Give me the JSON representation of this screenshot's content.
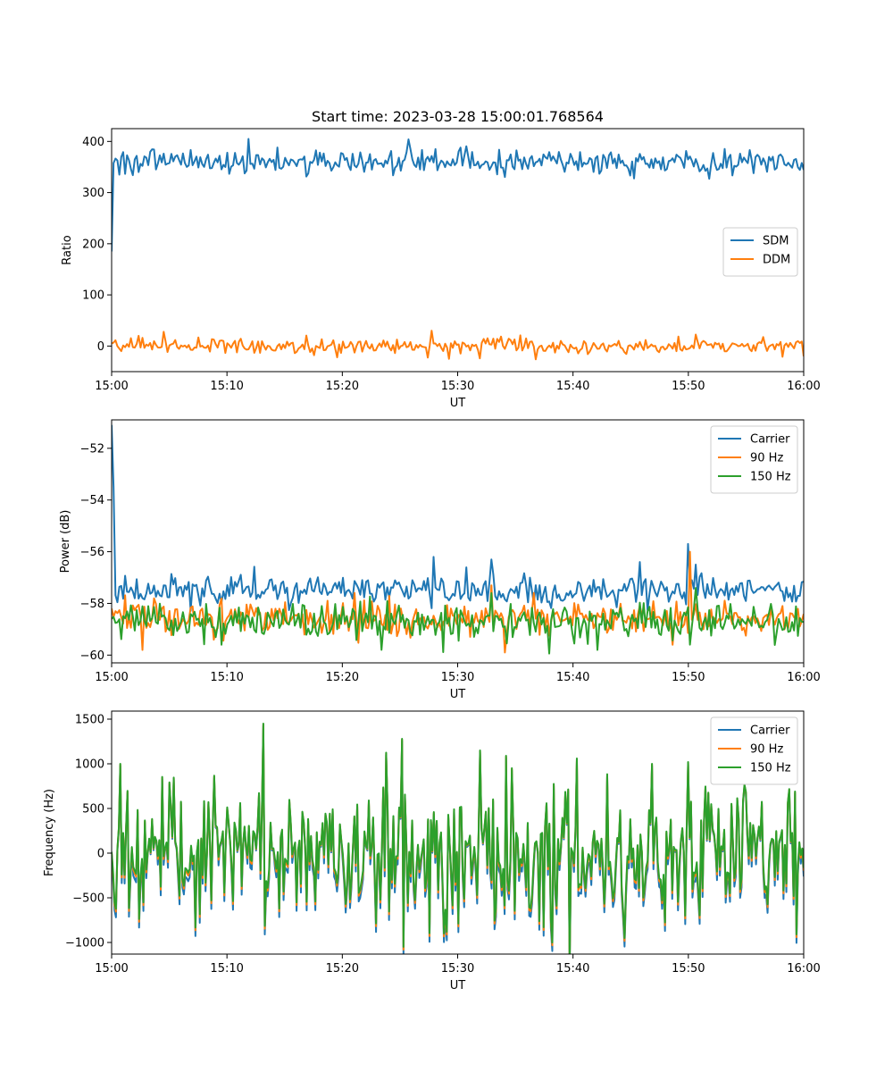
{
  "chart_data": [
    {
      "type": "line",
      "title": "Start time: 2023-03-28 15:00:01.768564",
      "xlabel": "UT",
      "ylabel": "Ratio",
      "x_range": [
        "15:00",
        "16:00"
      ],
      "xticks": [
        "15:00",
        "15:10",
        "15:20",
        "15:30",
        "15:40",
        "15:50",
        "16:00"
      ],
      "ylim": [
        -50,
        425
      ],
      "yticks": [
        0,
        100,
        200,
        300,
        400
      ],
      "ytick_labels": [
        "0",
        "100",
        "200",
        "300",
        "400"
      ],
      "legend_position": "center-right",
      "series": [
        {
          "name": "SDM",
          "color": "#1f77b4",
          "start": 185,
          "mean": 360,
          "noise": 12,
          "spikes": [
            [
              11.8,
              405
            ],
            [
              25.7,
              404
            ],
            [
              28.0,
              385
            ],
            [
              0.7,
              335
            ]
          ]
        },
        {
          "name": "DDM",
          "color": "#ff7f0e",
          "start": 5,
          "mean": 0,
          "noise": 7,
          "spikes": [
            [
              4.5,
              28
            ],
            [
              27.8,
              30
            ],
            [
              36.8,
              -26
            ],
            [
              29.2,
              -25
            ],
            [
              19.6,
              -22
            ],
            [
              60,
              -20
            ]
          ]
        }
      ]
    },
    {
      "type": "line",
      "title": "",
      "xlabel": "UT",
      "ylabel": "Power (dB)",
      "x_range": [
        "15:00",
        "16:00"
      ],
      "xticks": [
        "15:00",
        "15:10",
        "15:20",
        "15:30",
        "15:40",
        "15:50",
        "16:00"
      ],
      "ylim": [
        -60.3,
        -50.9
      ],
      "yticks": [
        -60,
        -58,
        -56,
        -54,
        -52
      ],
      "ytick_labels": [
        "−60",
        "−58",
        "−56",
        "−54",
        "−52"
      ],
      "legend_position": "top-right",
      "series": [
        {
          "name": "Carrier",
          "color": "#1f77b4",
          "start": -51.1,
          "mean": -57.5,
          "noise": 0.3,
          "spikes": [
            [
              0.2,
              -53.5
            ],
            [
              27.9,
              -56.2
            ],
            [
              33.0,
              -56.3
            ],
            [
              45.8,
              -56.4
            ],
            [
              50.0,
              -55.7
            ],
            [
              50.7,
              -56.5
            ]
          ]
        },
        {
          "name": "90 Hz",
          "color": "#ff7f0e",
          "start": -58.2,
          "mean": -58.6,
          "noise": 0.35,
          "spikes": [
            [
              50.1,
              -56.0
            ],
            [
              2.7,
              -59.8
            ],
            [
              34.1,
              -59.9
            ],
            [
              48.7,
              -59.6
            ],
            [
              33.0,
              -57.3
            ]
          ]
        },
        {
          "name": "150 Hz",
          "color": "#2ca02c",
          "start": -58.6,
          "mean": -58.7,
          "noise": 0.38,
          "spikes": [
            [
              33.0,
              -57.6
            ],
            [
              42.2,
              -59.8
            ],
            [
              50.6,
              -57.4
            ],
            [
              9.5,
              -59.6
            ]
          ]
        }
      ]
    },
    {
      "type": "line",
      "title": "",
      "xlabel": "UT",
      "ylabel": "Frequency (Hz)",
      "x_range": [
        "15:00",
        "16:00"
      ],
      "xticks": [
        "15:00",
        "15:10",
        "15:20",
        "15:30",
        "15:40",
        "15:50",
        "16:00"
      ],
      "ylim": [
        -1130,
        1590
      ],
      "yticks": [
        -1000,
        -500,
        0,
        500,
        1000,
        1500
      ],
      "ytick_labels": [
        "−1000",
        "−500",
        "0",
        "500",
        "1000",
        "1500"
      ],
      "legend_position": "top-right",
      "series": [
        {
          "name": "Carrier",
          "color": "#1f77b4",
          "offset": -60
        },
        {
          "name": "90 Hz",
          "color": "#ff7f0e",
          "offset": -20
        },
        {
          "name": "150 Hz",
          "color": "#2ca02c",
          "offset": 0,
          "mean": 0,
          "noise": 380,
          "spikes": [
            [
              13.1,
              1450
            ],
            [
              25.2,
              1280
            ],
            [
              28.8,
              -900
            ],
            [
              38.2,
              -1000
            ],
            [
              44.5,
              -950
            ],
            [
              29.1,
              -880
            ],
            [
              31.9,
              1150
            ],
            [
              40.3,
              1060
            ],
            [
              0.8,
              1000
            ],
            [
              46.8,
              1000
            ],
            [
              50.0,
              1020
            ],
            [
              34.2,
              1090
            ]
          ]
        }
      ]
    }
  ]
}
